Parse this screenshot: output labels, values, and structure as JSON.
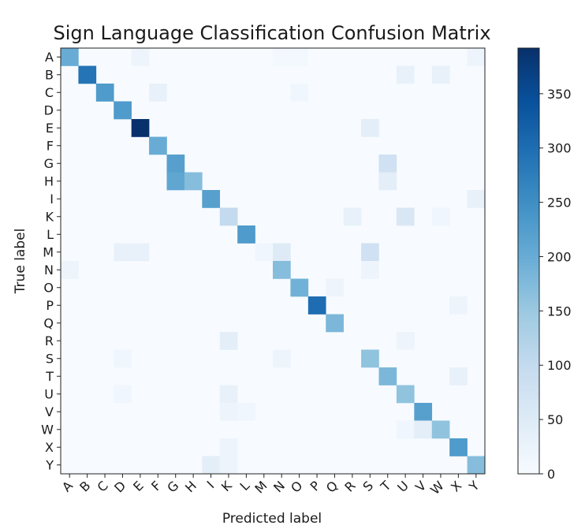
{
  "chart_data": {
    "type": "heatmap",
    "title": "Sign Language Classification Confusion Matrix",
    "xlabel": "Predicted label",
    "ylabel": "True label",
    "x_categories": [
      "A",
      "B",
      "C",
      "D",
      "E",
      "F",
      "G",
      "H",
      "I",
      "K",
      "L",
      "M",
      "N",
      "O",
      "P",
      "Q",
      "R",
      "S",
      "T",
      "U",
      "V",
      "W",
      "X",
      "Y"
    ],
    "y_categories": [
      "A",
      "B",
      "C",
      "D",
      "E",
      "F",
      "G",
      "H",
      "I",
      "K",
      "L",
      "M",
      "N",
      "O",
      "P",
      "Q",
      "R",
      "S",
      "T",
      "U",
      "V",
      "W",
      "X",
      "Y"
    ],
    "colorbar": {
      "min": 0,
      "max": 392,
      "ticks": [
        0,
        50,
        100,
        150,
        200,
        250,
        300,
        350
      ],
      "colormap": "Blues"
    },
    "cells": [
      {
        "row": "A",
        "col": "A",
        "value": 200
      },
      {
        "row": "A",
        "col": "E",
        "value": 20
      },
      {
        "row": "A",
        "col": "N",
        "value": 10
      },
      {
        "row": "A",
        "col": "O",
        "value": 10
      },
      {
        "row": "A",
        "col": "Y",
        "value": 20
      },
      {
        "row": "B",
        "col": "B",
        "value": 290
      },
      {
        "row": "B",
        "col": "U",
        "value": 30
      },
      {
        "row": "B",
        "col": "W",
        "value": 30
      },
      {
        "row": "C",
        "col": "C",
        "value": 230
      },
      {
        "row": "C",
        "col": "F",
        "value": 30
      },
      {
        "row": "C",
        "col": "O",
        "value": 15
      },
      {
        "row": "D",
        "col": "D",
        "value": 230
      },
      {
        "row": "E",
        "col": "E",
        "value": 392
      },
      {
        "row": "E",
        "col": "S",
        "value": 40
      },
      {
        "row": "F",
        "col": "F",
        "value": 200
      },
      {
        "row": "G",
        "col": "G",
        "value": 220
      },
      {
        "row": "G",
        "col": "T",
        "value": 80
      },
      {
        "row": "H",
        "col": "G",
        "value": 210
      },
      {
        "row": "H",
        "col": "H",
        "value": 170
      },
      {
        "row": "H",
        "col": "T",
        "value": 40
      },
      {
        "row": "I",
        "col": "I",
        "value": 220
      },
      {
        "row": "I",
        "col": "Y",
        "value": 30
      },
      {
        "row": "K",
        "col": "K",
        "value": 100
      },
      {
        "row": "K",
        "col": "R",
        "value": 30
      },
      {
        "row": "K",
        "col": "U",
        "value": 60
      },
      {
        "row": "K",
        "col": "W",
        "value": 15
      },
      {
        "row": "L",
        "col": "L",
        "value": 230
      },
      {
        "row": "M",
        "col": "D",
        "value": 30
      },
      {
        "row": "M",
        "col": "E",
        "value": 30
      },
      {
        "row": "M",
        "col": "M",
        "value": 15
      },
      {
        "row": "M",
        "col": "N",
        "value": 50
      },
      {
        "row": "M",
        "col": "S",
        "value": 80
      },
      {
        "row": "N",
        "col": "A",
        "value": 20
      },
      {
        "row": "N",
        "col": "N",
        "value": 170
      },
      {
        "row": "N",
        "col": "S",
        "value": 20
      },
      {
        "row": "O",
        "col": "O",
        "value": 190
      },
      {
        "row": "O",
        "col": "Q",
        "value": 20
      },
      {
        "row": "P",
        "col": "P",
        "value": 300
      },
      {
        "row": "P",
        "col": "X",
        "value": 20
      },
      {
        "row": "Q",
        "col": "Q",
        "value": 180
      },
      {
        "row": "R",
        "col": "K",
        "value": 40
      },
      {
        "row": "R",
        "col": "U",
        "value": 20
      },
      {
        "row": "S",
        "col": "D",
        "value": 15
      },
      {
        "row": "S",
        "col": "N",
        "value": 20
      },
      {
        "row": "S",
        "col": "S",
        "value": 160
      },
      {
        "row": "T",
        "col": "T",
        "value": 180
      },
      {
        "row": "T",
        "col": "X",
        "value": 30
      },
      {
        "row": "U",
        "col": "D",
        "value": 15
      },
      {
        "row": "U",
        "col": "K",
        "value": 30
      },
      {
        "row": "U",
        "col": "U",
        "value": 160
      },
      {
        "row": "V",
        "col": "K",
        "value": 20
      },
      {
        "row": "V",
        "col": "L",
        "value": 15
      },
      {
        "row": "V",
        "col": "V",
        "value": 220
      },
      {
        "row": "W",
        "col": "U",
        "value": 15
      },
      {
        "row": "W",
        "col": "V",
        "value": 40
      },
      {
        "row": "W",
        "col": "W",
        "value": 160
      },
      {
        "row": "X",
        "col": "K",
        "value": 20
      },
      {
        "row": "X",
        "col": "X",
        "value": 230
      },
      {
        "row": "Y",
        "col": "I",
        "value": 40
      },
      {
        "row": "Y",
        "col": "K",
        "value": 20
      },
      {
        "row": "Y",
        "col": "Y",
        "value": 170
      }
    ]
  }
}
